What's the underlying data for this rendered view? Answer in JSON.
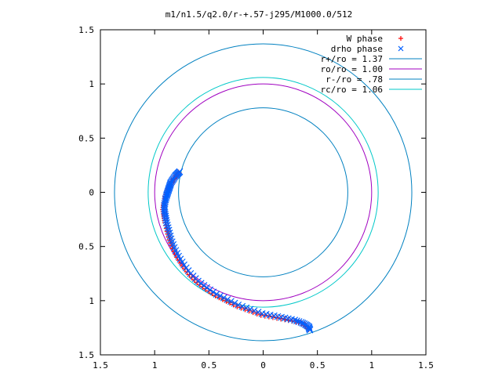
{
  "chart_data": {
    "type": "scatter",
    "title": "m1/n1.5/q2.0/r-+.57-j295/M1000.0/512",
    "xlim": [
      -1.5,
      1.5
    ],
    "ylim": [
      -1.5,
      1.5
    ],
    "x_ticks": [
      -1.5,
      -1,
      -0.5,
      0,
      0.5,
      1,
      1.5
    ],
    "y_ticks": [
      -1.5,
      -1,
      -0.5,
      0,
      0.5,
      1,
      1.5
    ],
    "x_tick_labels": [
      "1.5",
      "1",
      "0.5",
      "0",
      "0.5",
      "1",
      "1.5"
    ],
    "y_tick_labels": [
      "1.5",
      "1",
      "0.5",
      "0",
      "0.5",
      "1",
      "1.5"
    ],
    "grid": false,
    "legend_position": "top-right",
    "series": [
      {
        "name": "W phase",
        "kind": "points",
        "marker": "plus",
        "color": "#ff0000",
        "points": [
          [
            -0.78,
            0.18
          ],
          [
            -0.81,
            0.14
          ],
          [
            -0.84,
            0.1
          ],
          [
            -0.86,
            0.06
          ],
          [
            -0.88,
            0.02
          ],
          [
            -0.9,
            -0.04
          ],
          [
            -0.91,
            -0.1
          ],
          [
            -0.92,
            -0.16
          ],
          [
            -0.91,
            -0.22
          ],
          [
            -0.9,
            -0.28
          ],
          [
            -0.88,
            -0.36
          ],
          [
            -0.86,
            -0.44
          ],
          [
            -0.83,
            -0.52
          ],
          [
            -0.79,
            -0.6
          ],
          [
            -0.74,
            -0.68
          ],
          [
            -0.68,
            -0.76
          ],
          [
            -0.61,
            -0.83
          ],
          [
            -0.53,
            -0.89
          ],
          [
            -0.44,
            -0.95
          ],
          [
            -0.34,
            -1.0
          ],
          [
            -0.24,
            -1.05
          ],
          [
            -0.13,
            -1.09
          ],
          [
            -0.02,
            -1.13
          ],
          [
            0.09,
            -1.15
          ],
          [
            0.2,
            -1.17
          ],
          [
            0.3,
            -1.19
          ],
          [
            0.38,
            -1.22
          ],
          [
            0.42,
            -1.26
          ]
        ]
      },
      {
        "name": "drho phase",
        "kind": "points",
        "marker": "cross",
        "color": "#0060ff",
        "points": [
          [
            -0.77,
            0.19
          ],
          [
            -0.79,
            0.17
          ],
          [
            -0.81,
            0.15
          ],
          [
            -0.83,
            0.12
          ],
          [
            -0.85,
            0.09
          ],
          [
            -0.86,
            0.06
          ],
          [
            -0.87,
            0.03
          ],
          [
            -0.88,
            0.0
          ],
          [
            -0.89,
            -0.03
          ],
          [
            -0.9,
            -0.07
          ],
          [
            -0.91,
            -0.12
          ],
          [
            -0.91,
            -0.17
          ],
          [
            -0.9,
            -0.22
          ],
          [
            -0.89,
            -0.28
          ],
          [
            -0.87,
            -0.35
          ],
          [
            -0.85,
            -0.43
          ],
          [
            -0.82,
            -0.51
          ],
          [
            -0.78,
            -0.59
          ],
          [
            -0.73,
            -0.67
          ],
          [
            -0.67,
            -0.75
          ],
          [
            -0.6,
            -0.82
          ],
          [
            -0.52,
            -0.88
          ],
          [
            -0.43,
            -0.94
          ],
          [
            -0.33,
            -0.99
          ],
          [
            -0.23,
            -1.04
          ],
          [
            -0.12,
            -1.08
          ],
          [
            -0.01,
            -1.12
          ],
          [
            0.1,
            -1.14
          ],
          [
            0.2,
            -1.16
          ],
          [
            0.29,
            -1.18
          ],
          [
            0.35,
            -1.2
          ],
          [
            0.39,
            -1.22
          ],
          [
            0.42,
            -1.24
          ],
          [
            0.43,
            -1.27
          ]
        ]
      },
      {
        "name": "r+/ro = 1.37",
        "kind": "circle",
        "radius": 1.37,
        "color": "#0080c0"
      },
      {
        "name": "ro/ro = 1.00",
        "kind": "circle",
        "radius": 1.0,
        "color": "#a000c0"
      },
      {
        "name": "r-/ro = .78",
        "kind": "circle",
        "radius": 0.78,
        "color": "#0080c0"
      },
      {
        "name": "rc/ro = 1.06",
        "kind": "circle",
        "radius": 1.06,
        "color": "#00c8c8"
      }
    ]
  }
}
